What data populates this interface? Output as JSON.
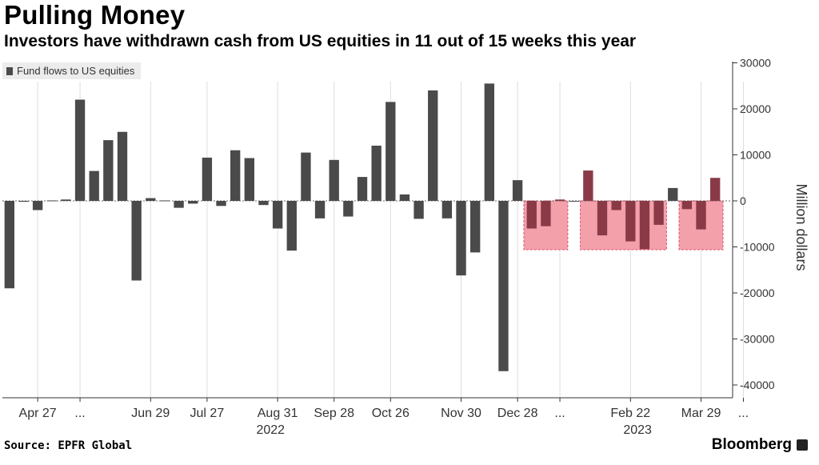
{
  "title": "Pulling Money",
  "subtitle": "Investors have withdrawn cash from US equities in 11 out of 15 weeks this year",
  "source": "Source: EPFR Global",
  "brand": "Bloomberg",
  "colors": {
    "bar": "#4a4a4a",
    "highlight_bar": "#8a3a46",
    "highlight_fill": "#f3a0ab",
    "highlight_border": "#e0506a",
    "grid": "#dddddd"
  },
  "chart_data": {
    "type": "bar",
    "legend": [
      "Fund flows to US equities"
    ],
    "legend_position": "top-left",
    "ylabel": "Million dollars",
    "ylim": [
      -40000,
      30000
    ],
    "yticks": [
      30000,
      20000,
      10000,
      0,
      -10000,
      -20000,
      -30000,
      -40000
    ],
    "y_axis_side": "right",
    "grid": "vertical",
    "values": [
      -19000,
      -200,
      -2000,
      100,
      300,
      22000,
      6500,
      13200,
      15000,
      -17300,
      600,
      100,
      -1500,
      -600,
      9400,
      -1100,
      11000,
      9300,
      -900,
      -6000,
      -10800,
      10500,
      -3800,
      8900,
      -3400,
      5200,
      12000,
      21500,
      1400,
      -3900,
      24000,
      -3800,
      -16200,
      -11200,
      25500,
      -37000,
      4500,
      -6000,
      -5500,
      300,
      0,
      6600,
      -7500,
      -2000,
      -8800,
      -10500,
      -5200,
      2800,
      -1800,
      -6200,
      5000
    ],
    "x_tick_labels": [
      "Apr 27",
      "...",
      "Jun 29",
      "Jul 27",
      "Aug 31",
      "Sep 28",
      "Oct 26",
      "Nov 30",
      "Dec 28",
      "...",
      "Feb 22",
      "Mar 29",
      "..."
    ],
    "x_tick_index": [
      2,
      5,
      10,
      14,
      19,
      23,
      27,
      32,
      36,
      39,
      44,
      49,
      52
    ],
    "year_labels": [
      "2022",
      "2023"
    ],
    "year_label_index": [
      18.5,
      44.5
    ],
    "highlight_ranges": [
      [
        37,
        39
      ],
      [
        41,
        46
      ],
      [
        48,
        50
      ]
    ]
  }
}
